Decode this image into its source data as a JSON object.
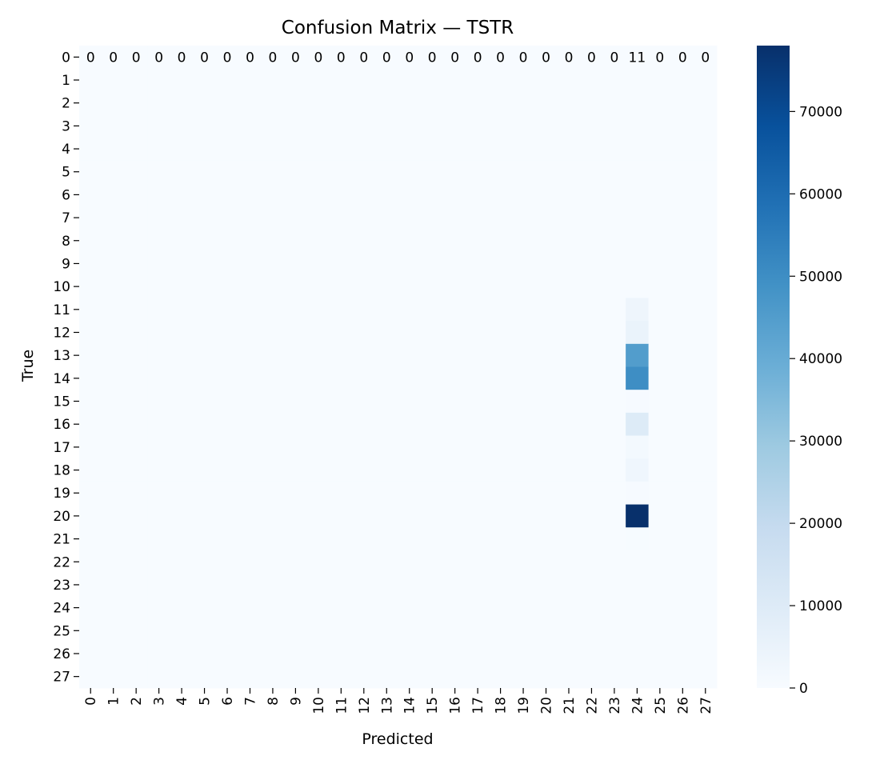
{
  "chart_data": {
    "type": "heatmap",
    "title": "Confusion Matrix — TSTR",
    "xlabel": "Predicted",
    "ylabel": "True",
    "x_categories": [
      "0",
      "1",
      "2",
      "3",
      "4",
      "5",
      "6",
      "7",
      "8",
      "9",
      "10",
      "11",
      "12",
      "13",
      "14",
      "15",
      "16",
      "17",
      "18",
      "19",
      "20",
      "21",
      "22",
      "23",
      "24",
      "25",
      "26",
      "27"
    ],
    "y_categories": [
      "0",
      "1",
      "2",
      "3",
      "4",
      "5",
      "6",
      "7",
      "8",
      "9",
      "10",
      "11",
      "12",
      "13",
      "14",
      "15",
      "16",
      "17",
      "18",
      "19",
      "20",
      "21",
      "22",
      "23",
      "24",
      "25",
      "26",
      "27"
    ],
    "cell_annotations_row": 0,
    "row0_values": [
      0,
      0,
      0,
      0,
      0,
      0,
      0,
      0,
      0,
      0,
      0,
      0,
      0,
      0,
      0,
      0,
      0,
      0,
      0,
      0,
      0,
      0,
      0,
      0,
      11,
      0,
      0,
      0
    ],
    "column24_values": [
      {
        "row": 0,
        "value": 11
      },
      {
        "row": 11,
        "value": 3500
      },
      {
        "row": 12,
        "value": 5000
      },
      {
        "row": 13,
        "value": 45000
      },
      {
        "row": 14,
        "value": 50000
      },
      {
        "row": 15,
        "value": 500
      },
      {
        "row": 16,
        "value": 10000
      },
      {
        "row": 17,
        "value": 1500
      },
      {
        "row": 18,
        "value": 3000
      },
      {
        "row": 19,
        "value": 400
      },
      {
        "row": 20,
        "value": 78000
      },
      {
        "row": 21,
        "value": 200
      }
    ],
    "colorbar": {
      "colormap": "Blues",
      "vmin": 0,
      "vmax": 78000,
      "ticks": [
        0,
        10000,
        20000,
        30000,
        40000,
        50000,
        60000,
        70000
      ],
      "tick_labels": [
        "0",
        "10000",
        "20000",
        "30000",
        "40000",
        "50000",
        "60000",
        "70000"
      ]
    },
    "grid": false,
    "legend": "colorbar-right"
  }
}
